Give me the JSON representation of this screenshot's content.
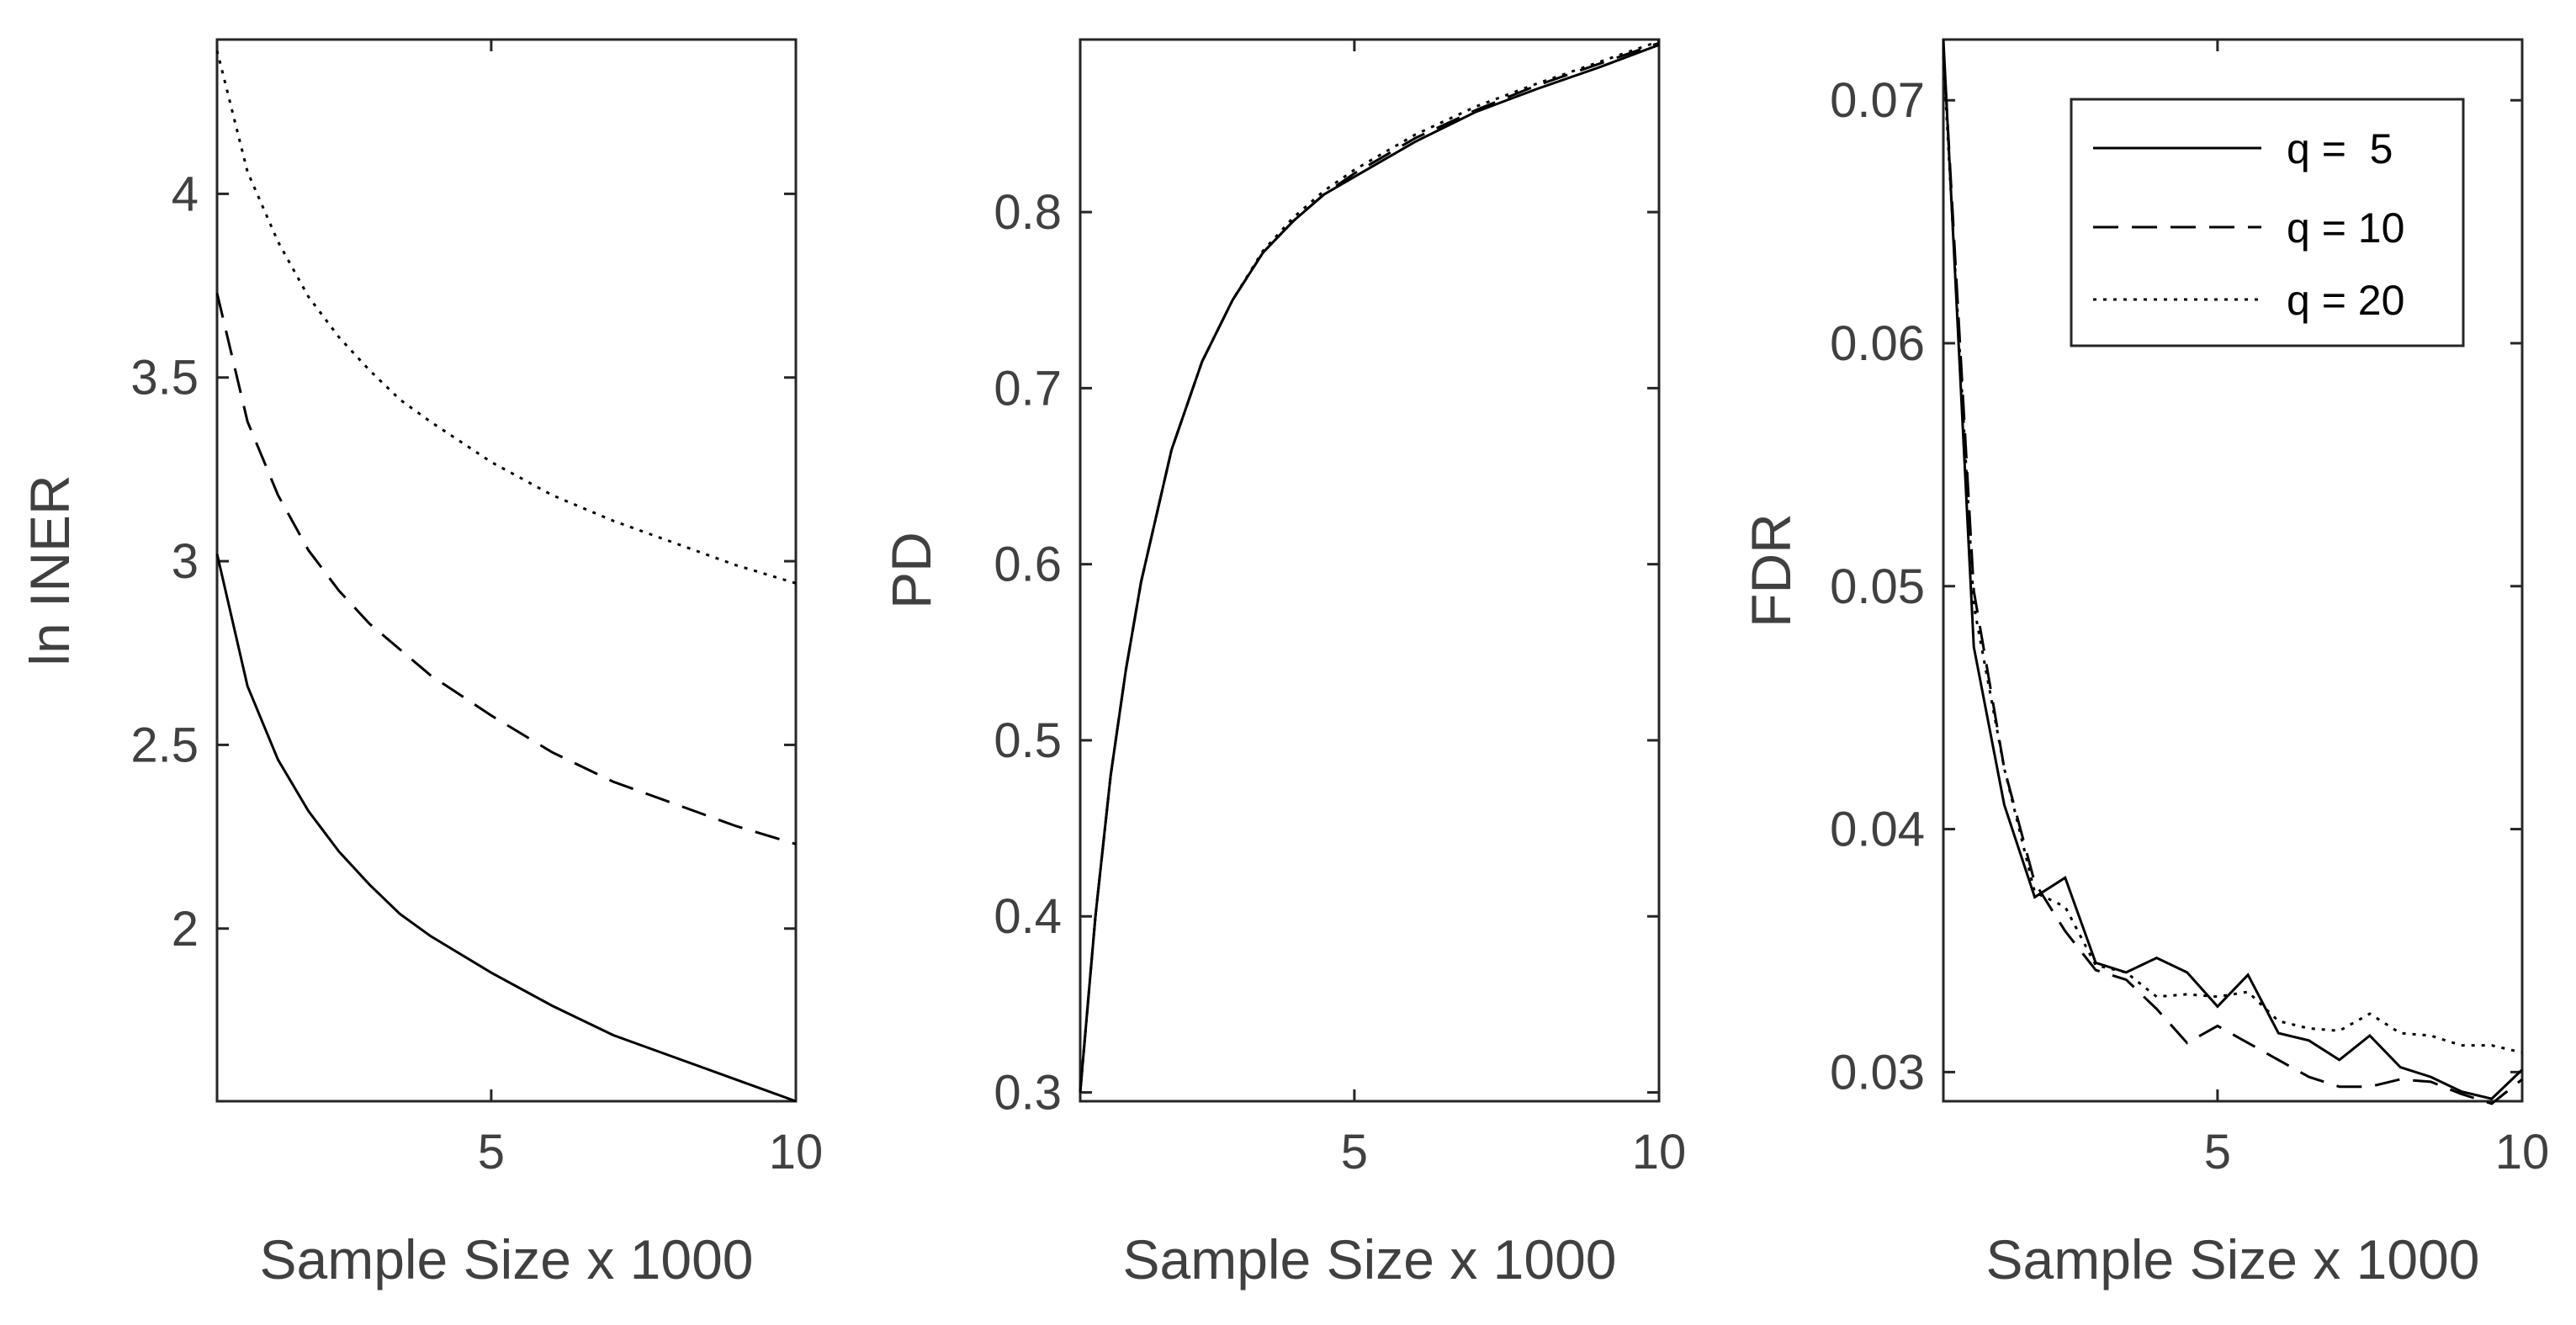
{
  "chart_data": [
    {
      "type": "line",
      "title": "",
      "xlabel": "Sample Size x 1000",
      "ylabel": "ln INER",
      "xlim": [
        0.5,
        10
      ],
      "ylim": [
        1.53,
        4.42
      ],
      "xticks": [
        5,
        10
      ],
      "xtick_labels": [
        "5",
        "10"
      ],
      "yticks": [
        2,
        2.5,
        3,
        3.5,
        4
      ],
      "ytick_labels": [
        "2",
        "2.5",
        "3",
        "3.5",
        "4"
      ],
      "grid": false,
      "legend": null,
      "series": [
        {
          "style": "solid",
          "x": [
            0.5,
            1,
            1.5,
            2,
            2.5,
            3,
            3.5,
            4,
            5,
            6,
            7,
            8,
            9,
            10
          ],
          "y": [
            3.02,
            2.66,
            2.46,
            2.32,
            2.21,
            2.12,
            2.04,
            1.98,
            1.88,
            1.79,
            1.71,
            1.65,
            1.59,
            1.53
          ]
        },
        {
          "style": "dashed",
          "x": [
            0.5,
            1,
            1.5,
            2,
            2.5,
            3,
            3.5,
            4,
            5,
            6,
            7,
            8,
            9,
            10
          ],
          "y": [
            3.73,
            3.38,
            3.18,
            3.03,
            2.92,
            2.83,
            2.76,
            2.69,
            2.58,
            2.48,
            2.4,
            2.34,
            2.28,
            2.23
          ]
        },
        {
          "style": "dotted",
          "x": [
            0.5,
            1,
            1.5,
            2,
            2.5,
            3,
            3.5,
            4,
            5,
            6,
            7,
            8,
            9,
            10
          ],
          "y": [
            4.39,
            4.06,
            3.87,
            3.72,
            3.61,
            3.52,
            3.44,
            3.38,
            3.27,
            3.18,
            3.11,
            3.05,
            2.99,
            2.94
          ]
        }
      ]
    },
    {
      "type": "line",
      "title": "",
      "xlabel": "Sample Size x 1000",
      "ylabel": "PD",
      "xlim": [
        0.5,
        10
      ],
      "ylim": [
        0.295,
        0.898
      ],
      "xticks": [
        5,
        10
      ],
      "xtick_labels": [
        "5",
        "10"
      ],
      "yticks": [
        0.3,
        0.4,
        0.5,
        0.6,
        0.7,
        0.8
      ],
      "ytick_labels": [
        "0.3",
        "0.4",
        "0.5",
        "0.6",
        "0.7",
        "0.8"
      ],
      "grid": false,
      "legend": null,
      "series": [
        {
          "style": "solid",
          "x": [
            0.5,
            0.75,
            1,
            1.25,
            1.5,
            2,
            2.5,
            3,
            3.5,
            4,
            4.5,
            5,
            6,
            7,
            8,
            9,
            10
          ],
          "y": [
            0.3,
            0.4,
            0.48,
            0.54,
            0.59,
            0.665,
            0.715,
            0.75,
            0.777,
            0.795,
            0.81,
            0.82,
            0.84,
            0.857,
            0.87,
            0.882,
            0.895
          ]
        },
        {
          "style": "dashed",
          "x": [
            0.5,
            0.75,
            1,
            1.25,
            1.5,
            2,
            2.5,
            3,
            3.5,
            4,
            4.5,
            5,
            6,
            7,
            8,
            9,
            10
          ],
          "y": [
            0.3,
            0.4,
            0.48,
            0.54,
            0.59,
            0.665,
            0.715,
            0.75,
            0.777,
            0.795,
            0.81,
            0.822,
            0.842,
            0.858,
            0.872,
            0.884,
            0.896
          ]
        },
        {
          "style": "dotted",
          "x": [
            0.5,
            0.75,
            1,
            1.25,
            1.5,
            2,
            2.5,
            3,
            3.5,
            4,
            4.5,
            5,
            6,
            7,
            8,
            9,
            10
          ],
          "y": [
            0.3,
            0.4,
            0.48,
            0.54,
            0.59,
            0.665,
            0.715,
            0.75,
            0.778,
            0.797,
            0.812,
            0.824,
            0.844,
            0.86,
            0.873,
            0.885,
            0.897
          ]
        }
      ]
    },
    {
      "type": "line",
      "title": "",
      "xlabel": "Sample Size x 1000",
      "ylabel": "FDR",
      "xlim": [
        0.5,
        10
      ],
      "ylim": [
        0.0288,
        0.0725
      ],
      "xticks": [
        5,
        10
      ],
      "xtick_labels": [
        "5",
        "10"
      ],
      "yticks": [
        0.03,
        0.04,
        0.05,
        0.06,
        0.07
      ],
      "ytick_labels": [
        "0.03",
        "0.04",
        "0.05",
        "0.06",
        "0.07"
      ],
      "grid": false,
      "legend": {
        "position": "top-right",
        "entries": [
          "q =  5",
          "q = 10",
          "q = 20"
        ]
      },
      "series": [
        {
          "name": "q =  5",
          "style": "solid",
          "x": [
            0.5,
            1,
            1.5,
            2,
            2.5,
            3,
            3.5,
            4,
            4.5,
            5,
            5.5,
            6,
            6.5,
            7,
            7.5,
            8,
            8.5,
            9,
            9.5,
            10
          ],
          "y": [
            0.0725,
            0.0475,
            0.041,
            0.0372,
            0.038,
            0.0345,
            0.0341,
            0.0347,
            0.0341,
            0.0327,
            0.034,
            0.0316,
            0.0313,
            0.0305,
            0.0315,
            0.0302,
            0.0298,
            0.0292,
            0.0289,
            0.0301
          ]
        },
        {
          "name": "q = 10",
          "style": "dashed",
          "x": [
            0.5,
            1,
            1.5,
            2,
            2.5,
            3,
            3.5,
            4,
            4.5,
            5,
            5.5,
            6,
            6.5,
            7,
            7.5,
            8,
            8.5,
            9,
            9.5,
            10
          ],
          "y": [
            0.0722,
            0.0498,
            0.0425,
            0.0378,
            0.0358,
            0.0342,
            0.0338,
            0.0326,
            0.0312,
            0.0319,
            0.0312,
            0.0305,
            0.0298,
            0.0294,
            0.0294,
            0.0297,
            0.0296,
            0.0291,
            0.0287,
            0.0297
          ]
        },
        {
          "name": "q = 20",
          "style": "dotted",
          "x": [
            0.5,
            1,
            1.5,
            2,
            2.5,
            3,
            3.5,
            4,
            4.5,
            5,
            5.5,
            6,
            6.5,
            7,
            7.5,
            8,
            8.5,
            9,
            9.5,
            10
          ],
          "y": [
            0.0718,
            0.0492,
            0.0425,
            0.0374,
            0.0368,
            0.0344,
            0.0341,
            0.0331,
            0.0332,
            0.0331,
            0.0333,
            0.0321,
            0.0318,
            0.0317,
            0.0324,
            0.0316,
            0.0315,
            0.0311,
            0.0311,
            0.0308
          ]
        }
      ]
    }
  ]
}
